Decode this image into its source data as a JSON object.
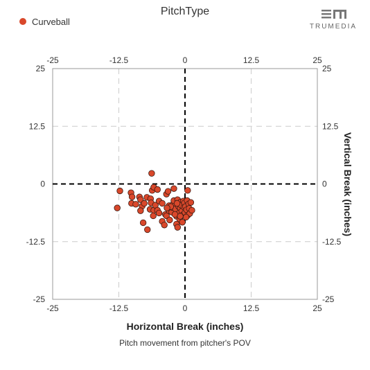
{
  "brand": {
    "name": "TRUMEDIA"
  },
  "chart_data": {
    "type": "scatter",
    "title": "PitchType",
    "subtitle": "Pitch movement from pitcher's POV",
    "xlabel": "Horizontal Break (inches)",
    "ylabel": "Vertical Break (inches)",
    "xlim": [
      -25,
      25
    ],
    "ylim": [
      -25,
      25
    ],
    "ticks": [
      -25,
      -12.5,
      0,
      12.5,
      25
    ],
    "tick_labels": [
      "-25",
      "-12.5",
      "0",
      "12.5",
      "25"
    ],
    "grid": true,
    "legend": {
      "position": "top-left",
      "entries": [
        "Curveball"
      ]
    },
    "series": [
      {
        "name": "Curveball",
        "color": "#d9482b",
        "points": [
          [
            -6.3,
            2.3
          ],
          [
            -12.8,
            -5.2
          ],
          [
            -12.3,
            -1.5
          ],
          [
            -10.2,
            -1.9
          ],
          [
            -10.0,
            -2.8
          ],
          [
            -10.1,
            -4.2
          ],
          [
            -9.3,
            -4.4
          ],
          [
            -8.6,
            -2.8
          ],
          [
            -8.4,
            -3.4
          ],
          [
            -8.1,
            -4.8
          ],
          [
            -8.4,
            -5.8
          ],
          [
            -7.7,
            -4.2
          ],
          [
            -7.9,
            -8.4
          ],
          [
            -7.1,
            -9.9
          ],
          [
            -7.2,
            -2.9
          ],
          [
            -6.5,
            -3.2
          ],
          [
            -6.2,
            -1.4
          ],
          [
            -5.9,
            -0.7
          ],
          [
            -5.2,
            -1.2
          ],
          [
            -6.4,
            -4.1
          ],
          [
            -6.6,
            -5.5
          ],
          [
            -5.9,
            -5.7
          ],
          [
            -6.0,
            -6.9
          ],
          [
            -5.6,
            -4.6
          ],
          [
            -5.2,
            -5.7
          ],
          [
            -4.9,
            -6.3
          ],
          [
            -4.9,
            -3.7
          ],
          [
            -4.3,
            -4.2
          ],
          [
            -4.3,
            -8.1
          ],
          [
            -3.9,
            -8.9
          ],
          [
            -3.7,
            -6.6
          ],
          [
            -3.5,
            -6.9
          ],
          [
            -3.5,
            -2.2
          ],
          [
            -3.2,
            -1.6
          ],
          [
            -3.0,
            -4.7
          ],
          [
            -3.0,
            -5.8
          ],
          [
            -2.9,
            -7.8
          ],
          [
            -2.5,
            -6.1
          ],
          [
            -2.4,
            -5.1
          ],
          [
            -2.2,
            -4.3
          ],
          [
            -2.1,
            -3.6
          ],
          [
            -2.1,
            -1.0
          ],
          [
            -1.8,
            -5.4
          ],
          [
            -1.6,
            -7.0
          ],
          [
            -1.6,
            -8.7
          ],
          [
            -1.4,
            -9.4
          ],
          [
            -1.4,
            -3.4
          ],
          [
            -1.2,
            -4.9
          ],
          [
            -1.1,
            -6.3
          ],
          [
            -1.0,
            -7.6
          ],
          [
            -0.9,
            -5.2
          ],
          [
            -0.8,
            -3.9
          ],
          [
            -0.7,
            -4.6
          ],
          [
            -0.6,
            -5.9
          ],
          [
            -0.5,
            -8.3
          ],
          [
            -0.4,
            -6.7
          ],
          [
            -0.3,
            -3.7
          ],
          [
            -0.2,
            -5.0
          ],
          [
            -0.1,
            -4.1
          ],
          [
            0.0,
            -6.2
          ],
          [
            0.1,
            -4.9
          ],
          [
            0.3,
            -5.6
          ],
          [
            0.4,
            -3.6
          ],
          [
            0.5,
            -1.4
          ],
          [
            0.5,
            -6.8
          ],
          [
            0.7,
            -4.3
          ],
          [
            0.8,
            -5.3
          ],
          [
            0.9,
            -6.4
          ],
          [
            1.1,
            -4.0
          ],
          [
            1.3,
            -5.7
          ],
          [
            -1.9,
            -6.6
          ],
          [
            -2.7,
            -4.9
          ],
          [
            -1.5,
            -4.2
          ],
          [
            0.2,
            -7.2
          ],
          [
            -0.9,
            -7.0
          ],
          [
            -3.4,
            -5.2
          ]
        ]
      }
    ]
  }
}
